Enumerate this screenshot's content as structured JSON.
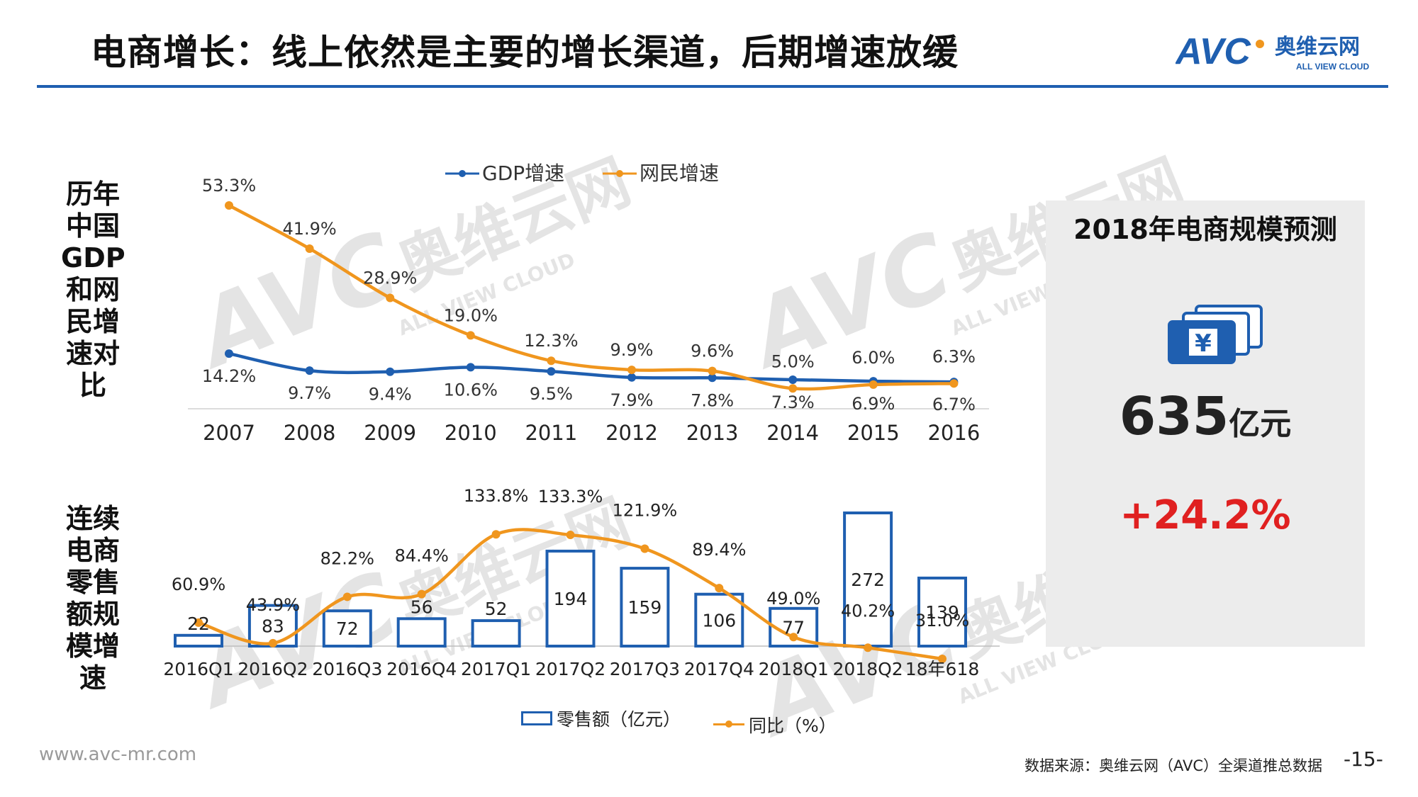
{
  "title": "电商增长：线上依然是主要的增长渠道，后期增速放缓",
  "logo": {
    "text": "奥维云网",
    "sub": "ALL VIEW CLOUD",
    "mark": "AVC"
  },
  "watermark": {
    "mark": "AVC",
    "text": "奥维云网",
    "sub": "ALL VIEW CLOUD"
  },
  "colors": {
    "accent": "#1f5fb0",
    "orange": "#f0961e",
    "red": "#e02020",
    "panel": "#ececec"
  },
  "gdp_side_label": "历年中国GDP和网民增速对比",
  "retail_side_label": "连续电商零售额规模增速",
  "forecast": {
    "title": "2018年电商规模预测",
    "value": "635",
    "unit": "亿元",
    "growth": "+24.2%",
    "icon": "yen-money-stack-icon"
  },
  "chart_data": [
    {
      "type": "line",
      "x": [
        "2007",
        "2008",
        "2009",
        "2010",
        "2011",
        "2012",
        "2013",
        "2014",
        "2015",
        "2016"
      ],
      "series": [
        {
          "name": "GDP增速",
          "values": [
            14.2,
            9.7,
            9.4,
            10.6,
            9.5,
            7.9,
            7.8,
            7.3,
            6.9,
            6.7
          ],
          "labels": [
            "14.2%",
            "9.7%",
            "9.4%",
            "10.6%",
            "9.5%",
            "7.9%",
            "7.8%",
            "7.3%",
            "6.9%",
            "6.7%"
          ]
        },
        {
          "name": "网民增速",
          "values": [
            53.3,
            41.9,
            28.9,
            19.0,
            12.3,
            9.9,
            9.6,
            5.0,
            6.0,
            6.3
          ],
          "labels": [
            "53.3%",
            "41.9%",
            "28.9%",
            "19.0%",
            "12.3%",
            "9.9%",
            "9.6%",
            "5.0%",
            "6.0%",
            "6.3%"
          ]
        }
      ],
      "legend_position": "top",
      "grid": false
    },
    {
      "type": "bar",
      "categories": [
        "2016Q1",
        "2016Q2",
        "2016Q3",
        "2016Q4",
        "2017Q1",
        "2017Q2",
        "2017Q3",
        "2017Q4",
        "2018Q1",
        "2018Q2",
        "18年618"
      ],
      "series": [
        {
          "name": "零售额（亿元）",
          "values": [
            22,
            83,
            72,
            56,
            52,
            194,
            159,
            106,
            77,
            272,
            139
          ]
        },
        {
          "name": "同比（%）",
          "type": "line",
          "values": [
            60.9,
            43.9,
            82.2,
            84.4,
            133.8,
            133.3,
            121.9,
            89.4,
            49.0,
            40.2,
            31.0
          ],
          "labels": [
            "60.9%",
            "43.9%",
            "82.2%",
            "84.4%",
            "133.8%",
            "133.3%",
            "121.9%",
            "89.4%",
            "49.0%",
            "40.2%",
            "31.0%"
          ]
        }
      ],
      "legend_position": "bottom",
      "grid": false
    }
  ],
  "website": "www.avc-mr.com",
  "source": "数据来源：奥维云网（AVC）全渠道推总数据",
  "page_number": "-15-"
}
